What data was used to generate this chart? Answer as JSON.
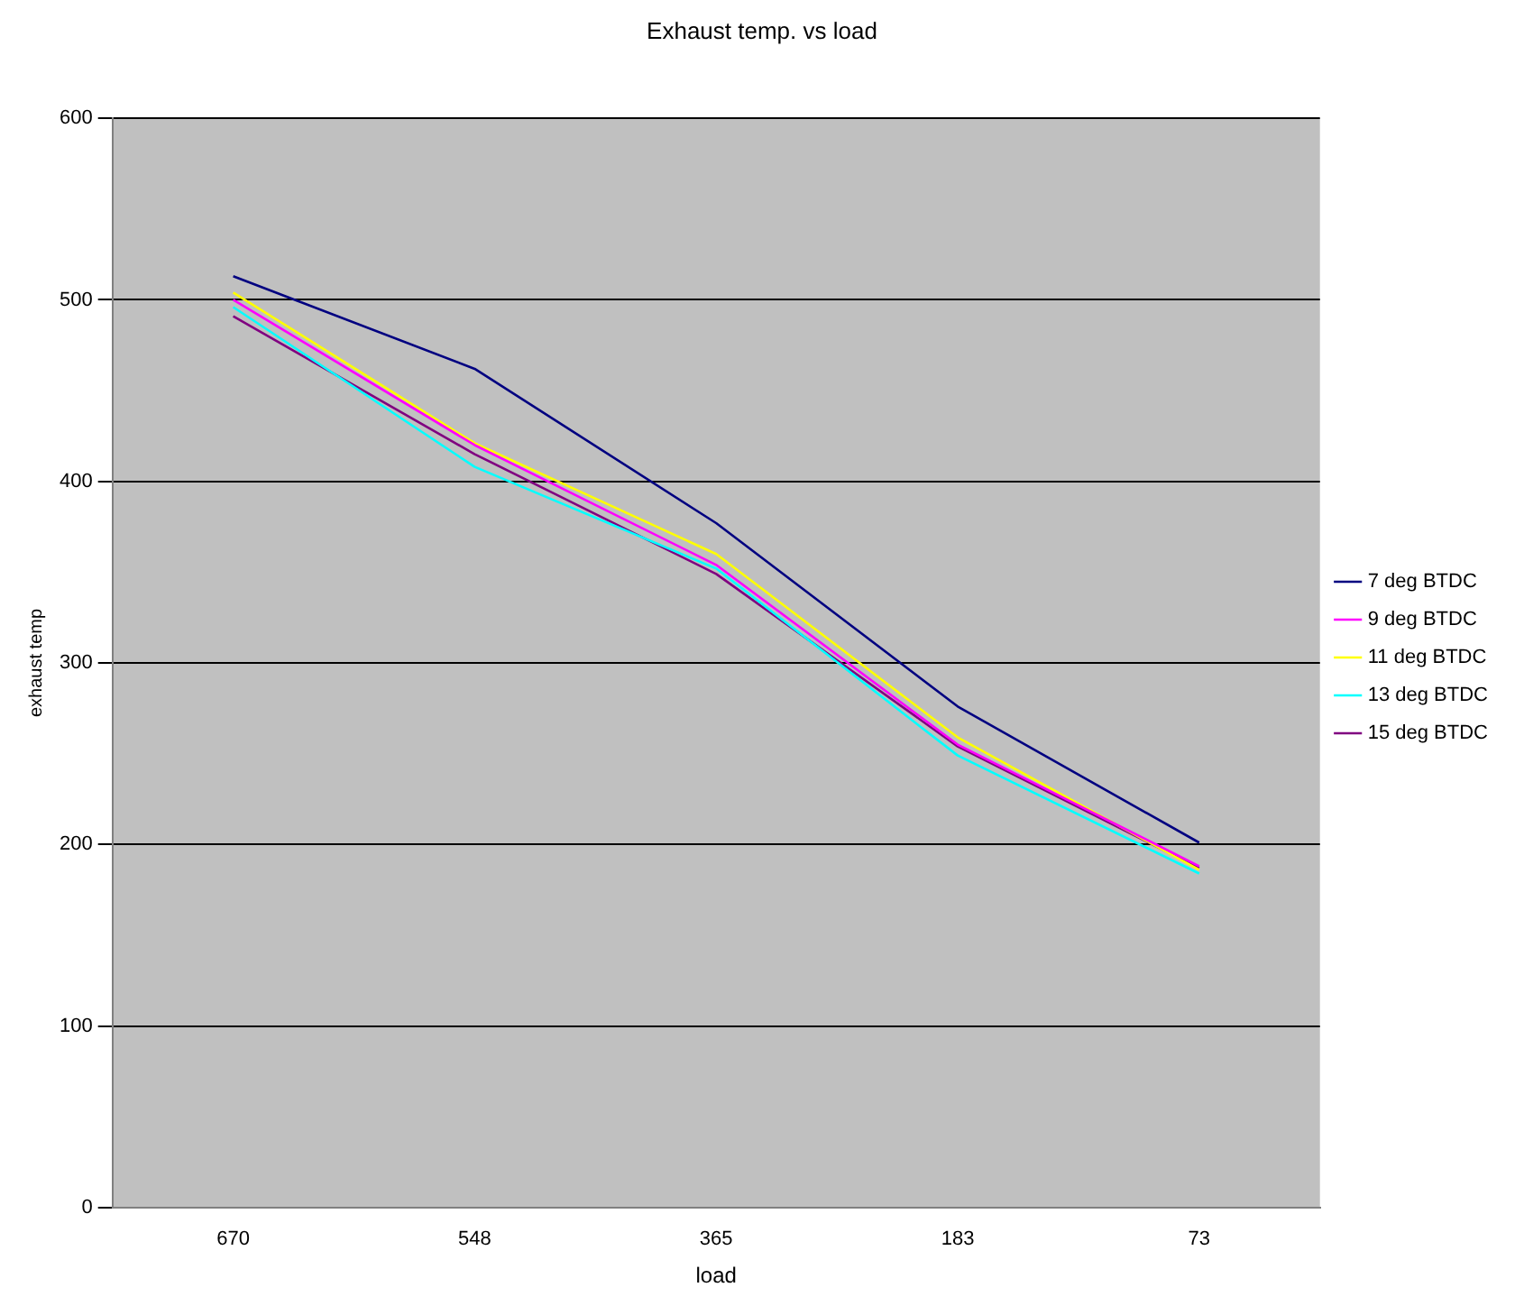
{
  "chart_data": {
    "type": "line",
    "title": "Exhaust temp. vs load",
    "xlabel": "load",
    "ylabel": "exhaust temp",
    "categories": [
      "670",
      "548",
      "365",
      "183",
      "73"
    ],
    "series": [
      {
        "name": "7 deg BTDC",
        "color": "#000080",
        "values": [
          513,
          462,
          377,
          276,
          201
        ]
      },
      {
        "name": "9 deg BTDC",
        "color": "#ff00ff",
        "values": [
          500,
          420,
          354,
          255,
          188
        ]
      },
      {
        "name": "11 deg BTDC",
        "color": "#ffff00",
        "values": [
          504,
          421,
          360,
          259,
          186
        ]
      },
      {
        "name": "13 deg BTDC",
        "color": "#00ffff",
        "values": [
          496,
          408,
          352,
          249,
          184
        ]
      },
      {
        "name": "15 deg BTDC",
        "color": "#800080",
        "values": [
          491,
          415,
          349,
          254,
          187
        ]
      }
    ],
    "ylim": [
      0,
      600
    ],
    "yticks": [
      0,
      100,
      200,
      300,
      400,
      500,
      600
    ],
    "grid": "y",
    "legend": "right",
    "marker": "none",
    "line_style": "solid"
  }
}
